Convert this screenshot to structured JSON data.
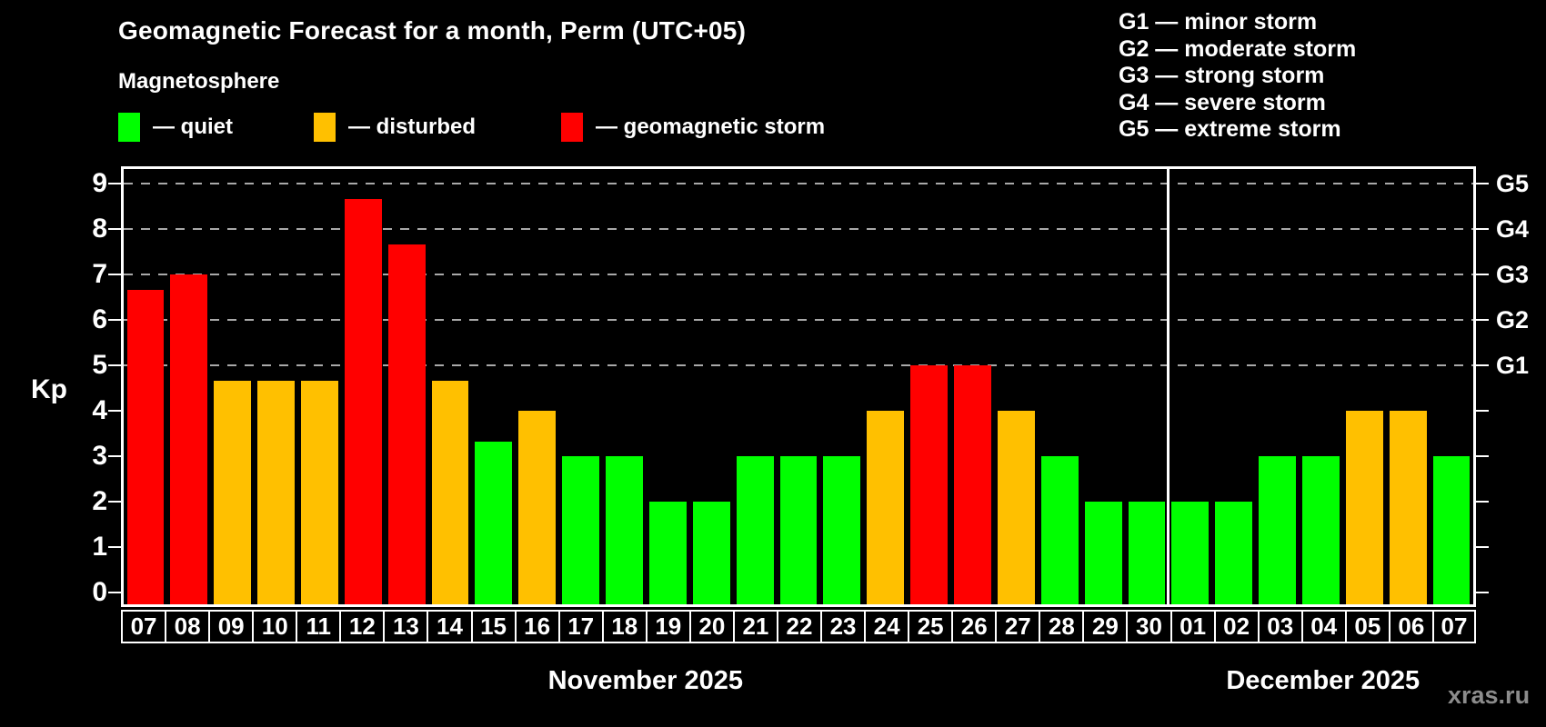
{
  "title": "Geomagnetic Forecast for a month, Perm (UTC+05)",
  "subtitle": "Magnetosphere",
  "legend": {
    "items": [
      {
        "key": "quiet",
        "label": "— quiet",
        "color": "#00ff00"
      },
      {
        "key": "disturbed",
        "label": "— disturbed",
        "color": "#ffc000"
      },
      {
        "key": "storm",
        "label": "— geomagnetic storm",
        "color": "#ff0000"
      }
    ]
  },
  "g_scale": {
    "items": [
      "G1 — minor storm",
      "G2 — moderate storm",
      "G3 — strong storm",
      "G4 — severe storm",
      "G5 — extreme storm"
    ]
  },
  "chart_data": {
    "type": "bar",
    "title": "Geomagnetic Forecast for a month, Perm (UTC+05)",
    "ylabel": "Kp",
    "ylim": [
      0,
      9
    ],
    "y_ticks": [
      0,
      1,
      2,
      3,
      4,
      5,
      6,
      7,
      8,
      9
    ],
    "grid_kp": [
      5,
      6,
      7,
      8,
      9
    ],
    "grid_style": "dashed",
    "right_axis": [
      {
        "kp": 5,
        "label": "G1"
      },
      {
        "kp": 6,
        "label": "G2"
      },
      {
        "kp": 7,
        "label": "G3"
      },
      {
        "kp": 8,
        "label": "G4"
      },
      {
        "kp": 9,
        "label": "G5"
      }
    ],
    "months": [
      {
        "label": "November 2025",
        "days": 24
      },
      {
        "label": "December 2025",
        "days": 7
      }
    ],
    "bars": [
      {
        "day": "07",
        "kp": 6.67,
        "state": "storm"
      },
      {
        "day": "08",
        "kp": 7.0,
        "state": "storm"
      },
      {
        "day": "09",
        "kp": 4.67,
        "state": "disturbed"
      },
      {
        "day": "10",
        "kp": 4.67,
        "state": "disturbed"
      },
      {
        "day": "11",
        "kp": 4.67,
        "state": "disturbed"
      },
      {
        "day": "12",
        "kp": 8.67,
        "state": "storm"
      },
      {
        "day": "13",
        "kp": 7.67,
        "state": "storm"
      },
      {
        "day": "14",
        "kp": 4.67,
        "state": "disturbed"
      },
      {
        "day": "15",
        "kp": 3.33,
        "state": "quiet"
      },
      {
        "day": "16",
        "kp": 4.0,
        "state": "disturbed"
      },
      {
        "day": "17",
        "kp": 3.0,
        "state": "quiet"
      },
      {
        "day": "18",
        "kp": 3.0,
        "state": "quiet"
      },
      {
        "day": "19",
        "kp": 2.0,
        "state": "quiet"
      },
      {
        "day": "20",
        "kp": 2.0,
        "state": "quiet"
      },
      {
        "day": "21",
        "kp": 3.0,
        "state": "quiet"
      },
      {
        "day": "22",
        "kp": 3.0,
        "state": "quiet"
      },
      {
        "day": "23",
        "kp": 3.0,
        "state": "quiet"
      },
      {
        "day": "24",
        "kp": 4.0,
        "state": "disturbed"
      },
      {
        "day": "25",
        "kp": 5.0,
        "state": "storm"
      },
      {
        "day": "26",
        "kp": 5.0,
        "state": "storm"
      },
      {
        "day": "27",
        "kp": 4.0,
        "state": "disturbed"
      },
      {
        "day": "28",
        "kp": 3.0,
        "state": "quiet"
      },
      {
        "day": "29",
        "kp": 2.0,
        "state": "quiet"
      },
      {
        "day": "30",
        "kp": 2.0,
        "state": "quiet"
      },
      {
        "day": "01",
        "kp": 2.0,
        "state": "quiet"
      },
      {
        "day": "02",
        "kp": 2.0,
        "state": "quiet"
      },
      {
        "day": "03",
        "kp": 3.0,
        "state": "quiet"
      },
      {
        "day": "04",
        "kp": 3.0,
        "state": "quiet"
      },
      {
        "day": "05",
        "kp": 4.0,
        "state": "disturbed"
      },
      {
        "day": "06",
        "kp": 4.0,
        "state": "disturbed"
      },
      {
        "day": "07",
        "kp": 3.0,
        "state": "quiet"
      }
    ]
  },
  "footer": {
    "watermark": "xras.ru"
  }
}
